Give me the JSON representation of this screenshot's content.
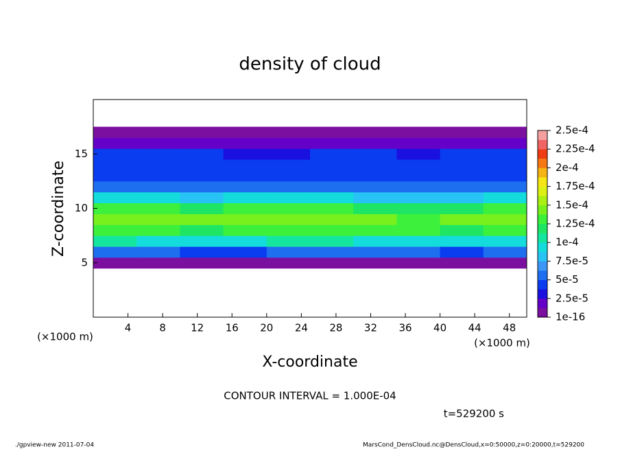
{
  "chart_data": {
    "type": "heatmap",
    "title": "density of cloud",
    "x_label": "X-coordinate",
    "y_label": "Z-coordinate",
    "x_unit": "(×1000 m)",
    "y_unit": "(×1000 m)",
    "contour_note": "CONTOUR INTERVAL = 1.000E-04",
    "time_note": "t=529200 s",
    "footer_left": "./gpview-new   2011-07-04",
    "footer_right": "MarsCond_DensCloud.nc@DensCloud,x=0:50000,z=0:20000,t=529200",
    "xlim": [
      0,
      50
    ],
    "ylim": [
      0,
      20
    ],
    "xticks": [
      4,
      8,
      12,
      16,
      20,
      24,
      28,
      32,
      36,
      40,
      44,
      48
    ],
    "yticks": [
      5,
      10,
      15
    ],
    "x": [
      2.5,
      7.5,
      12.5,
      17.5,
      22.5,
      27.5,
      32.5,
      37.5,
      42.5,
      47.5
    ],
    "z": [
      5,
      6,
      7,
      8,
      9,
      10,
      11,
      12,
      13,
      14,
      15,
      16,
      17
    ],
    "values": [
      [
        1e-06,
        1e-06,
        2e-06,
        1e-06,
        1e-06,
        1e-06,
        1e-06,
        2e-06,
        1e-06,
        1e-06
      ],
      [
        6e-05,
        5.5e-05,
        4e-05,
        5e-05,
        6e-05,
        6e-05,
        5.5e-05,
        6e-05,
        5e-05,
        5.5e-05
      ],
      [
        0.000105,
        0.0001,
        9e-05,
        0.0001,
        0.000105,
        0.000105,
        0.0001,
        0.0001,
        9.5e-05,
        0.0001
      ],
      [
        0.000135,
        0.00013,
        0.000125,
        0.00013,
        0.000135,
        0.000135,
        0.00013,
        0.00013,
        0.000125,
        0.00013
      ],
      [
        0.00014,
        0.000145,
        0.00014,
        0.00014,
        0.000145,
        0.000145,
        0.00014,
        0.000135,
        0.00014,
        0.00014
      ],
      [
        0.00013,
        0.00013,
        0.000125,
        0.00013,
        0.00013,
        0.00013,
        0.000125,
        0.00012,
        0.000125,
        0.00013
      ],
      [
        9.5e-05,
        9e-05,
        8.5e-05,
        9e-05,
        9e-05,
        9e-05,
        8.5e-05,
        8e-05,
        8.5e-05,
        9e-05
      ],
      [
        6e-05,
        6e-05,
        5.5e-05,
        6e-05,
        5.5e-05,
        6e-05,
        5.5e-05,
        5.5e-05,
        6e-05,
        6e-05
      ],
      [
        5e-05,
        5e-05,
        4.5e-05,
        4.5e-05,
        4.5e-05,
        5e-05,
        4.5e-05,
        5e-05,
        5e-05,
        5e-05
      ],
      [
        4.5e-05,
        4.5e-05,
        4.5e-05,
        4e-05,
        4e-05,
        4.5e-05,
        4.5e-05,
        4e-05,
        4.5e-05,
        4.5e-05
      ],
      [
        4e-05,
        4e-05,
        4e-05,
        3.5e-05,
        3.5e-05,
        4e-05,
        4e-05,
        3.5e-05,
        4e-05,
        4e-05
      ],
      [
        2e-05,
        2e-05,
        2e-05,
        2e-05,
        1.8e-05,
        2e-05,
        2e-05,
        2e-05,
        2e-05,
        2e-05
      ],
      [
        1e-07,
        1e-07,
        1e-07,
        1e-07,
        1e-07,
        1e-07,
        1e-07,
        1e-07,
        1e-07,
        1e-07
      ]
    ],
    "colorbar_ticks": [
      {
        "value": 1e-16,
        "label": "1e-16"
      },
      {
        "value": 2.5e-05,
        "label": "2.5e-5"
      },
      {
        "value": 5e-05,
        "label": "5e-5"
      },
      {
        "value": 7.5e-05,
        "label": "7.5e-5"
      },
      {
        "value": 0.0001,
        "label": "1e-4"
      },
      {
        "value": 0.000125,
        "label": "1.25e-4"
      },
      {
        "value": 0.00015,
        "label": "1.5e-4"
      },
      {
        "value": 0.000175,
        "label": "1.75e-4"
      },
      {
        "value": 0.0002,
        "label": "2e-4"
      },
      {
        "value": 0.000225,
        "label": "2.25e-4"
      },
      {
        "value": 0.00025,
        "label": "2.5e-4"
      }
    ],
    "colors": [
      "#7b10a0",
      "#6400c8",
      "#1a10e0",
      "#0a3cf0",
      "#1e6ef0",
      "#3c96f5",
      "#28c3f5",
      "#14dcdc",
      "#14e6a0",
      "#1ee664",
      "#3cf03c",
      "#78f01e",
      "#aaf014",
      "#dcf014",
      "#f5e614",
      "#f5b414",
      "#f57814",
      "#f03c14",
      "#f06464",
      "#f5a0a0"
    ]
  }
}
